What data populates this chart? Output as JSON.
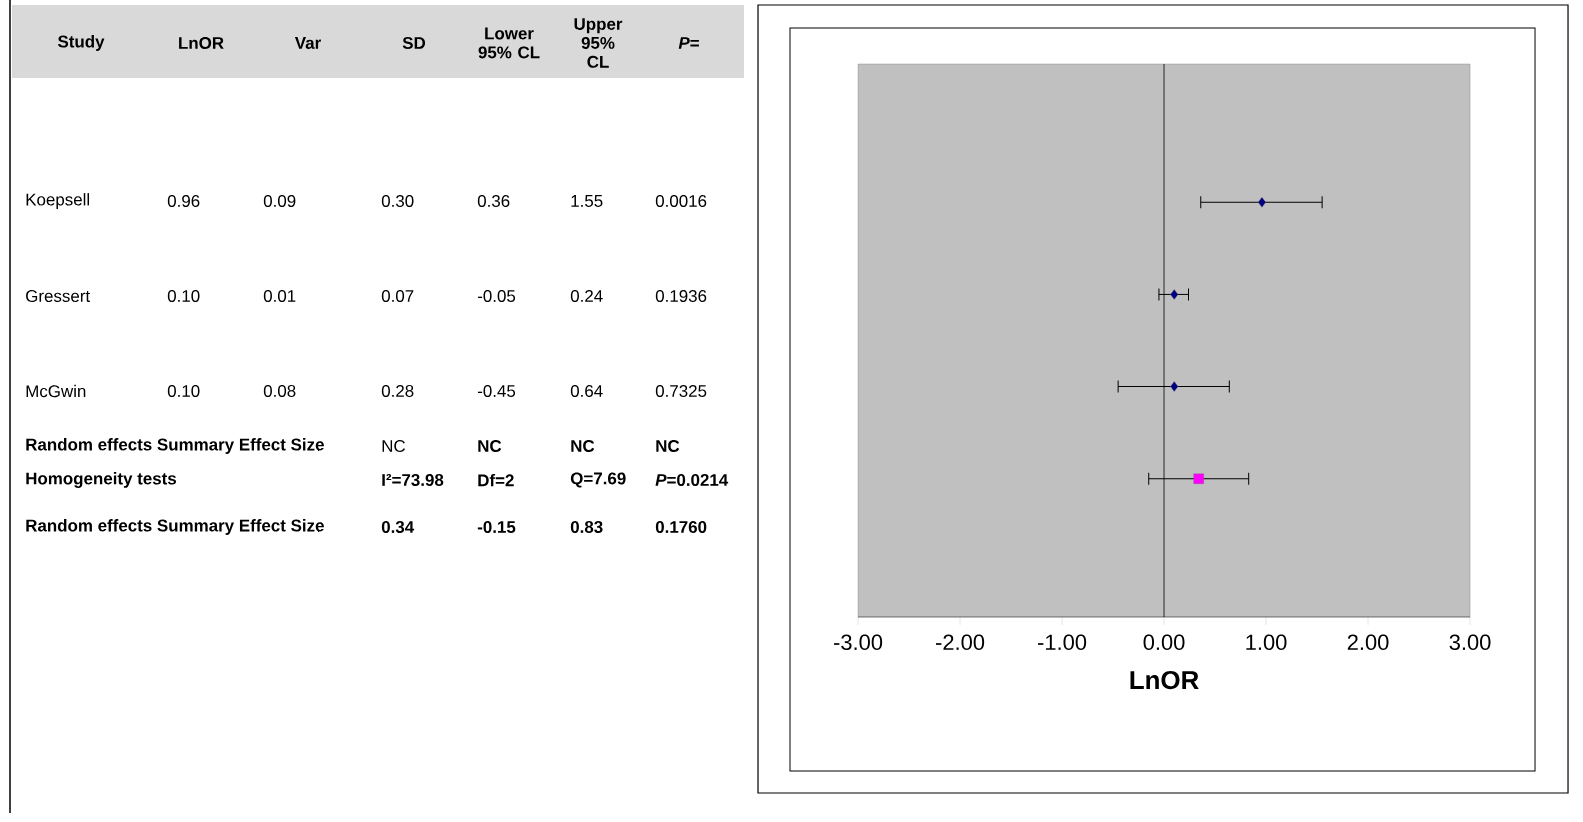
{
  "chart_data": [
    {
      "type": "other",
      "categories": [
        "Study",
        "LnOR",
        "Var",
        "SD",
        "Lower 95% CL",
        "Upper 95% CL",
        "*P*="
      ],
      "annotations": [
        "Koepsell",
        "0.96",
        "0.09",
        "0.30",
        "0.36",
        "1.55",
        "0.0016",
        "Gressert",
        "0.10",
        "0.01",
        "0.07",
        "-0.05",
        "0.24",
        "0.1936",
        "McGwin",
        "0.10",
        "0.08",
        "0.28",
        "-0.45",
        "0.64",
        "0.7325",
        "Random effects Summary Effect Size",
        "NC",
        "NC",
        "NC",
        "NC",
        "Homogeneity tests",
        "I²=73.98",
        "Df=2",
        "Q=7.69",
        "*P*=0.0214",
        "Random effects Summary Effect Size",
        "0.34",
        "-0.15",
        "0.83",
        "0.1760"
      ]
    },
    {
      "type": "scatter",
      "orientation": "horizontal",
      "categories": [
        null,
        null,
        null,
        null,
        null,
        null
      ],
      "xlabel": "LnOR",
      "xlim": [
        -3,
        3
      ],
      "xticks": [
        {
          "value": -3,
          "label": "-3.00"
        },
        {
          "value": -2,
          "label": "-2.00"
        },
        {
          "value": -1,
          "label": "-1.00"
        },
        {
          "value": 0,
          "label": "0.00"
        },
        {
          "value": 1,
          "label": "1.00"
        },
        {
          "value": 2,
          "label": "2.00"
        },
        {
          "value": 3,
          "label": "3.00"
        }
      ],
      "tick_labels": "x",
      "grid": false,
      "ref_lines": [
        {
          "axis": "x",
          "value": 0,
          "color": "#000000"
        }
      ],
      "series": [
        {
          "color": "#000080",
          "marker": "diamond",
          "values": [
            null,
            0.96,
            0.1,
            0.1,
            null,
            null
          ],
          "errors": [
            null,
            [
              0.36,
              1.55
            ],
            [
              -0.05,
              0.24
            ],
            [
              -0.45,
              0.64
            ],
            null,
            null
          ]
        },
        {
          "color": "#ff00ff",
          "marker": "square",
          "values": [
            null,
            null,
            null,
            null,
            0.34,
            null
          ],
          "errors": [
            null,
            null,
            null,
            null,
            [
              -0.15,
              0.83
            ],
            null
          ]
        }
      ]
    }
  ]
}
